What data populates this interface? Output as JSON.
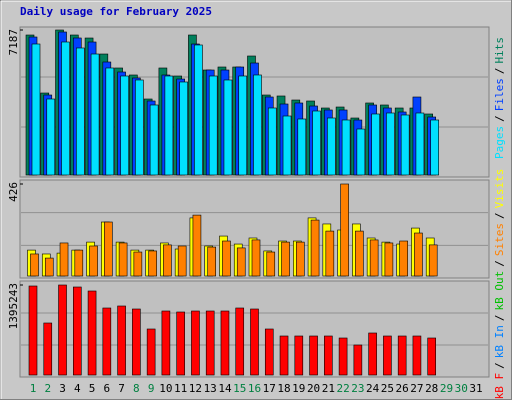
{
  "chart_data": [
    {
      "type": "bar",
      "title": "Daily usage for February 2025",
      "ylim": [
        0,
        7187
      ],
      "yticks": [
        7187
      ],
      "series": [
        {
          "name": "Hits",
          "color": "#00805c",
          "values": [
            6939,
            4064,
            7187,
            6939,
            6790,
            5997,
            5304,
            4957,
            3767,
            5304,
            4907,
            6939,
            5204,
            5353,
            5353,
            5898,
            3965,
            3916,
            3717,
            3668,
            3321,
            3370,
            2825,
            3569,
            3470,
            3321,
            3321,
            3024,
            null,
            null,
            null
          ]
        },
        {
          "name": "Files",
          "color": "#0040ff",
          "values": [
            6840,
            3965,
            7088,
            6791,
            6592,
            5601,
            5105,
            4808,
            3668,
            4957,
            4758,
            6493,
            5204,
            5204,
            5353,
            5551,
            3866,
            3519,
            3569,
            3420,
            3222,
            3222,
            2726,
            3470,
            3321,
            3123,
            3866,
            2875,
            null,
            null,
            null
          ]
        },
        {
          "name": "Pages",
          "color": "#00e0ff",
          "values": [
            6493,
            3767,
            6592,
            6295,
            5997,
            5304,
            4907,
            4709,
            3470,
            4907,
            4610,
            6444,
            4907,
            4709,
            4907,
            4957,
            3321,
            2924,
            2776,
            3172,
            2825,
            2726,
            2280,
            3024,
            3073,
            2974,
            3073,
            2726,
            null,
            null,
            null
          ]
        }
      ]
    },
    {
      "type": "bar",
      "ylim": [
        0,
        426
      ],
      "yticks": [
        426
      ],
      "series": [
        {
          "name": "Visits",
          "color": "#ffff00",
          "values": [
            120,
            102,
            106,
            120,
            157,
            250,
            157,
            120,
            120,
            153,
            125,
            269,
            139,
            185,
            148,
            176,
            116,
            162,
            162,
            269,
            241,
            213,
            241,
            176,
            157,
            148,
            222,
            176,
            null,
            null,
            null
          ]
        },
        {
          "name": "Sites",
          "color": "#ff8000",
          "values": [
            102,
            83,
            153,
            120,
            139,
            250,
            153,
            111,
            116,
            144,
            139,
            282,
            134,
            162,
            130,
            167,
            111,
            157,
            157,
            259,
            208,
            426,
            208,
            167,
            153,
            162,
            199,
            144,
            null,
            null,
            null
          ]
        }
      ]
    },
    {
      "type": "bar",
      "ylim": [
        0,
        1395243
      ],
      "yticks": [
        1395243
      ],
      "categories": [
        1,
        2,
        3,
        4,
        5,
        6,
        7,
        8,
        9,
        10,
        11,
        12,
        13,
        14,
        15,
        16,
        17,
        18,
        19,
        20,
        21,
        22,
        23,
        24,
        25,
        26,
        27,
        28,
        29,
        30,
        31
      ],
      "weekend": [
        1,
        2,
        8,
        9,
        15,
        16,
        22,
        23,
        29,
        30
      ],
      "weekend_color": "#008040",
      "series": [
        {
          "name": "kB F",
          "color": "#ff0000",
          "values": [
            1379740,
            806156,
            1395243,
            1364237,
            1302252,
            1038701,
            1069707,
            1023198,
            713138,
            992192,
            976689,
            992192,
            992192,
            992192,
            1038701,
            1023198,
            713138,
            604617,
            604617,
            604617,
            604617,
            573611,
            465090,
            651126,
            604617,
            604617,
            604617,
            573611,
            null,
            null,
            null
          ]
        }
      ],
      "extra_legend": [
        {
          "text": "kB In",
          "color": "#0080ff"
        },
        {
          "text": "kB Out",
          "color": "#00c000"
        }
      ]
    }
  ],
  "separator": "/"
}
